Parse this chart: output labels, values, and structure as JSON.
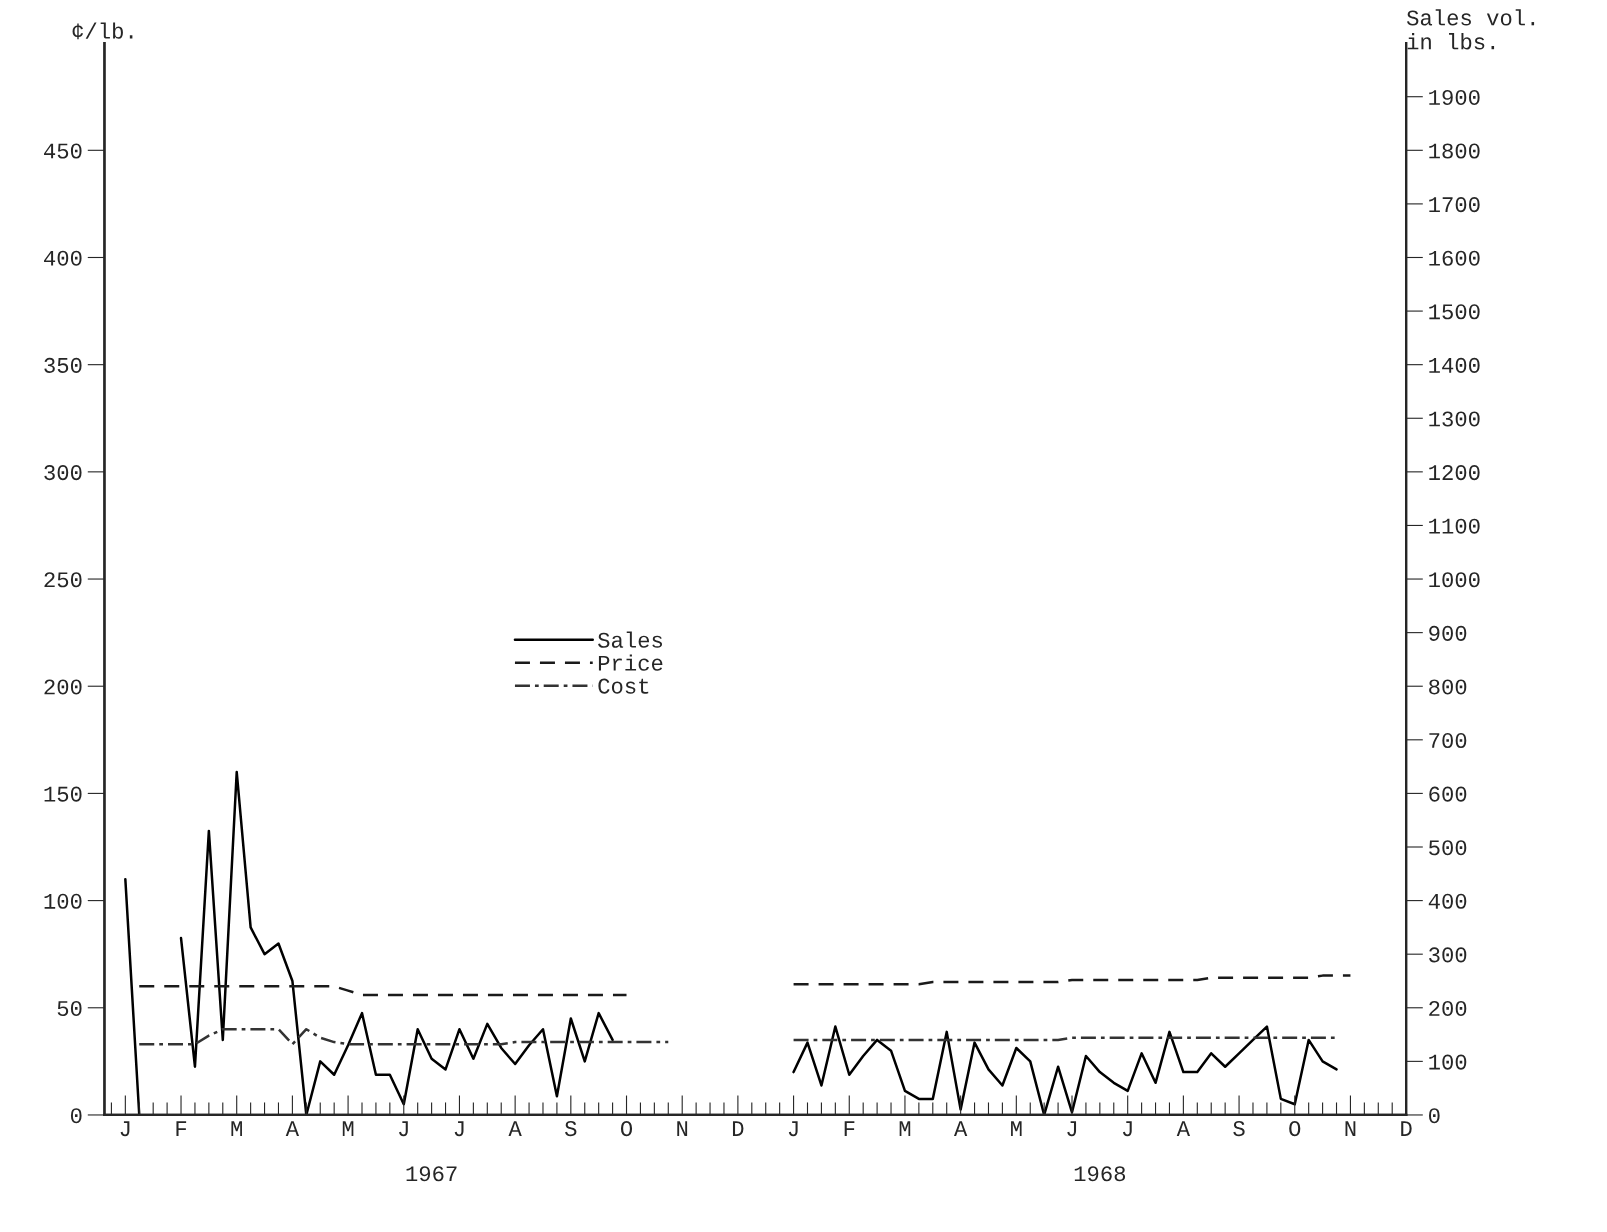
{
  "chart_data": {
    "type": "line",
    "ylabel": "¢/lb.",
    "y2label": "Sales vol.\nin lbs.",
    "categories": [
      null,
      "J",
      null,
      null,
      null,
      "F",
      null,
      null,
      null,
      "M",
      null,
      null,
      null,
      "A",
      null,
      null,
      null,
      "M",
      null,
      null,
      null,
      "J",
      null,
      null,
      null,
      "J",
      null,
      null,
      null,
      "A",
      null,
      null,
      null,
      "S",
      null,
      null,
      null,
      "O",
      null,
      null,
      null,
      "N",
      null,
      null,
      null,
      "D",
      null,
      null,
      null,
      "J",
      null,
      null,
      null,
      "F",
      null,
      null,
      null,
      "M",
      null,
      null,
      null,
      "A",
      null,
      null,
      null,
      "M",
      null,
      null,
      null,
      "J",
      null,
      null,
      null,
      "J",
      null,
      null,
      null,
      "A",
      null,
      null,
      null,
      "S",
      null,
      null,
      null,
      "O",
      null,
      null,
      null,
      "N",
      null,
      null,
      null,
      "D"
    ],
    "ylim": [
      0,
      500
    ],
    "yticks": [
      0,
      50,
      100,
      150,
      200,
      250,
      300,
      350,
      400,
      450
    ],
    "y2lim": [
      0,
      2000
    ],
    "y2ticks": [
      0,
      100,
      200,
      300,
      400,
      500,
      600,
      700,
      800,
      900,
      1000,
      1100,
      1200,
      1300,
      1400,
      1500,
      1600,
      1700,
      1800,
      1900
    ],
    "legend": "center left",
    "grid": false,
    "annotations": [
      "1967",
      "1968"
    ],
    "series": [
      {
        "name": "Sales",
        "axis": "y2",
        "color": "#000000",
        "line_style": "solid",
        "values": [
          null,
          440,
          0,
          null,
          null,
          330,
          90,
          530,
          140,
          640,
          350,
          300,
          320,
          250,
          0,
          100,
          75,
          130,
          190,
          75,
          75,
          20,
          160,
          105,
          85,
          160,
          105,
          170,
          125,
          95,
          130,
          160,
          35,
          180,
          100,
          190,
          140,
          null,
          null,
          null,
          null,
          null,
          null,
          null,
          null,
          null,
          null,
          null,
          null,
          80,
          135,
          55,
          165,
          75,
          110,
          140,
          120,
          45,
          30,
          30,
          155,
          10,
          135,
          85,
          55,
          125,
          100,
          0,
          90,
          5,
          110,
          80,
          60,
          45,
          115,
          60,
          155,
          80,
          80,
          115,
          90,
          115,
          140,
          165,
          30,
          20,
          140,
          100,
          85,
          null,
          null,
          null,
          null,
          null
        ]
      },
      {
        "name": "Price",
        "axis": "y",
        "color": "#1a1a1a",
        "line_style": "dashed",
        "values": [
          null,
          null,
          60,
          60,
          60,
          60,
          60,
          60,
          60,
          60,
          60,
          60,
          60,
          60,
          60,
          60,
          60,
          58,
          56,
          56,
          56,
          56,
          56,
          56,
          56,
          56,
          56,
          56,
          56,
          56,
          56,
          56,
          56,
          56,
          56,
          56,
          56,
          56,
          null,
          null,
          null,
          null,
          null,
          null,
          null,
          null,
          null,
          null,
          null,
          61,
          61,
          61,
          61,
          61,
          61,
          61,
          61,
          61,
          61,
          62,
          62,
          62,
          62,
          62,
          62,
          62,
          62,
          62,
          62,
          63,
          63,
          63,
          63,
          63,
          63,
          63,
          63,
          63,
          63,
          64,
          64,
          64,
          64,
          64,
          64,
          64,
          64,
          65,
          65,
          65,
          null,
          null,
          null,
          null
        ]
      },
      {
        "name": "Cost",
        "axis": "y",
        "color": "#333333",
        "line_style": "dashdot",
        "values": [
          null,
          null,
          33,
          33,
          33,
          33,
          33,
          37,
          40,
          40,
          40,
          40,
          40,
          33,
          40,
          36,
          34,
          33,
          33,
          33,
          33,
          33,
          33,
          33,
          33,
          33,
          33,
          33,
          33,
          34,
          34,
          34,
          34,
          34,
          34,
          34,
          34,
          34,
          34,
          34,
          34,
          null,
          null,
          null,
          null,
          null,
          null,
          null,
          null,
          35,
          35,
          35,
          35,
          35,
          35,
          35,
          35,
          35,
          35,
          35,
          35,
          35,
          35,
          35,
          35,
          35,
          35,
          35,
          35,
          36,
          36,
          36,
          36,
          36,
          36,
          36,
          36,
          36,
          36,
          36,
          36,
          36,
          36,
          36,
          36,
          36,
          36,
          36,
          36,
          null,
          null,
          null,
          null,
          null
        ]
      }
    ]
  }
}
